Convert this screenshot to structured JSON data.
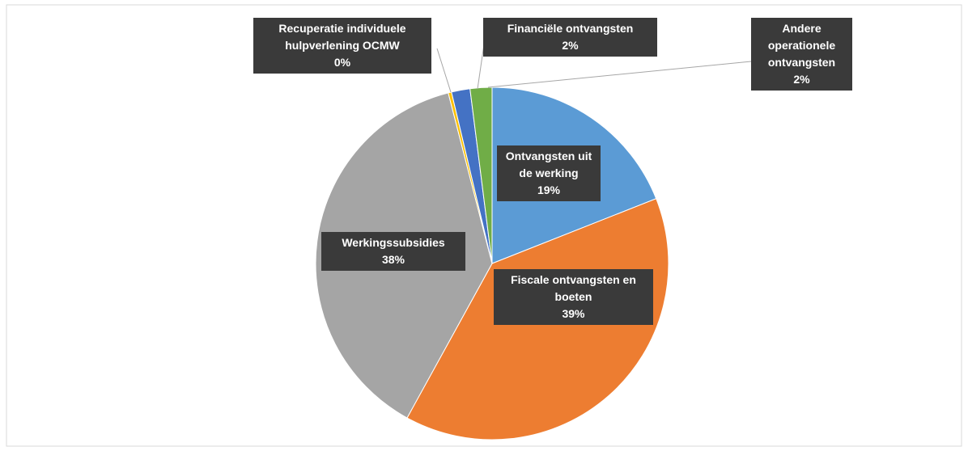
{
  "chart_data": {
    "type": "pie",
    "categories": [
      "Ontvangsten uit de werking",
      "Fiscale ontvangsten en boeten",
      "Werkingssubsidies",
      "Recuperatie individuele hulpverlening OCMW",
      "Andere operationele ontvangsten",
      "Financiële ontvangsten"
    ],
    "values": [
      19,
      39,
      38,
      0.3,
      1.7,
      2
    ],
    "value_labels": [
      "19%",
      "39%",
      "38%",
      "0%",
      "2%",
      "2%"
    ],
    "colors": [
      "#5b9bd5",
      "#ed7d31",
      "#a5a5a5",
      "#ffc000",
      "#4472c4",
      "#70ad47"
    ]
  }
}
